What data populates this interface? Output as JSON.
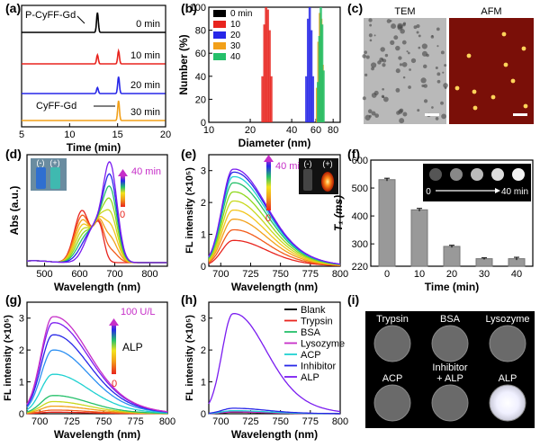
{
  "figure": {
    "panels": [
      "(a)",
      "(b)",
      "(c)",
      "(d)",
      "(e)",
      "(f)",
      "(g)",
      "(h)",
      "(i)"
    ]
  },
  "colors": {
    "black": "#000000",
    "red": "#e8241e",
    "blue": "#2727e8",
    "orange": "#f2a019",
    "green": "#25c06a",
    "magenta": "#c62ec8",
    "purple": "#7a1cf0",
    "cyan": "#1fd1d1",
    "lightblue": "#2b8ff2",
    "yellow": "#f2e21c",
    "lime": "#8fd81d"
  },
  "chart_data": [
    {
      "panel": "(a)",
      "type": "line",
      "xlabel": "Time (min)",
      "ylabel": "",
      "xlim": [
        5,
        20
      ],
      "xticks": [
        5,
        10,
        15,
        20
      ],
      "annotations": [
        "P-CyFF-Gd",
        "CyFF-Gd"
      ],
      "series": [
        {
          "name": "0 min",
          "color": "#000000",
          "peaks": [
            {
              "x": 12.9,
              "h": 1.0
            }
          ]
        },
        {
          "name": "10 min",
          "color": "#e8241e",
          "peaks": [
            {
              "x": 12.9,
              "h": 0.45
            },
            {
              "x": 15.1,
              "h": 0.65
            }
          ]
        },
        {
          "name": "20 min",
          "color": "#2727e8",
          "peaks": [
            {
              "x": 12.9,
              "h": 0.3
            },
            {
              "x": 15.1,
              "h": 0.85
            }
          ]
        },
        {
          "name": "30 min",
          "color": "#f2a019",
          "peaks": [
            {
              "x": 15.1,
              "h": 1.0
            }
          ]
        }
      ]
    },
    {
      "panel": "(b)",
      "type": "bar",
      "xlabel": "Diameter (nm)",
      "ylabel": "Number (%)",
      "xlim": [
        10,
        80
      ],
      "xticks": [
        10,
        20,
        40,
        60,
        80
      ],
      "ylim": [
        0,
        100
      ],
      "yticks": [
        0,
        20,
        40,
        60,
        80,
        100
      ],
      "legend": "top-left",
      "series": [
        {
          "name": "0 min",
          "color": "#000000",
          "bins": []
        },
        {
          "name": "10",
          "color": "#e8241e",
          "bins": [
            [
              24.5,
              40
            ],
            [
              25.3,
              85
            ],
            [
              26,
              100
            ],
            [
              26.8,
              98
            ],
            [
              27.6,
              80
            ],
            [
              28.4,
              40
            ]
          ]
        },
        {
          "name": "20",
          "color": "#2727e8",
          "bins": [
            [
              51,
              40
            ],
            [
              52.5,
              90
            ],
            [
              54,
              100
            ],
            [
              55.5,
              80
            ],
            [
              57,
              40
            ]
          ]
        },
        {
          "name": "30",
          "color": "#f2a019",
          "bins": [
            [
              61,
              30
            ],
            [
              62.5,
              70
            ],
            [
              64,
              95
            ],
            [
              65.5,
              90
            ],
            [
              67,
              50
            ]
          ]
        },
        {
          "name": "40",
          "color": "#25c06a",
          "bins": [
            [
              62,
              35
            ],
            [
              63.5,
              75
            ],
            [
              65,
              100
            ],
            [
              66.5,
              85
            ],
            [
              68,
              45
            ]
          ]
        }
      ]
    },
    {
      "panel": "(c)",
      "type": "table",
      "images": [
        "TEM",
        "AFM"
      ]
    },
    {
      "panel": "(d)",
      "type": "line",
      "xlabel": "Wavelength (nm)",
      "ylabel": "Abs (a.u.)",
      "xlim": [
        450,
        850
      ],
      "xticks": [
        500,
        600,
        700,
        800
      ],
      "inset": [
        "(-)",
        "(+)"
      ],
      "time_label": "40 min",
      "start_label": "0",
      "series_count": 9
    },
    {
      "panel": "(e)",
      "type": "line",
      "xlabel": "Wavelength (nm)",
      "ylabel": "FL intensity (×10⁵)",
      "xlim": [
        690,
        800
      ],
      "xticks": [
        700,
        725,
        750,
        775,
        800
      ],
      "ylim": [
        0,
        3.5
      ],
      "yticks": [
        0,
        1,
        2,
        3
      ],
      "inset": [
        "(-)",
        "(+)"
      ],
      "time_label": "40 min",
      "start_label": "0",
      "peak_values": [
        0.85,
        1.2,
        1.55,
        1.85,
        2.15,
        2.45,
        2.75,
        2.95,
        3.1,
        3.2
      ]
    },
    {
      "panel": "(f)",
      "type": "bar",
      "xlabel": "Time (min)",
      "ylabel": "T₁ (ms)",
      "categories": [
        "0",
        "10",
        "20",
        "30",
        "40"
      ],
      "values": [
        530,
        422,
        291,
        247,
        247
      ],
      "errors": [
        5,
        5,
        4,
        3,
        5
      ],
      "ylim": [
        220,
        600
      ],
      "yticks": [
        220,
        300,
        400,
        500,
        600
      ],
      "inset_label_start": "0",
      "inset_label_end": "40 min"
    },
    {
      "panel": "(g)",
      "type": "line",
      "xlabel": "Wavelength (nm)",
      "ylabel": "FL intensity (×10⁵)",
      "xlim": [
        690,
        800
      ],
      "xticks": [
        700,
        725,
        750,
        775,
        800
      ],
      "ylim": [
        0,
        3.5
      ],
      "yticks": [
        0,
        1,
        2,
        3
      ],
      "top_label": "100 U/L",
      "mid_label": "ALP",
      "bottom_label": "0",
      "peak_values": [
        0.05,
        0.12,
        0.25,
        0.4,
        0.6,
        1.3,
        2.1,
        2.6,
        3.0,
        3.2
      ]
    },
    {
      "panel": "(h)",
      "type": "line",
      "xlabel": "Wavelength (nm)",
      "ylabel": "FL intensity (×10⁵)",
      "xlim": [
        690,
        800
      ],
      "xticks": [
        700,
        725,
        750,
        775,
        800
      ],
      "ylim": [
        0,
        3.5
      ],
      "yticks": [
        0,
        1,
        2,
        3
      ],
      "legend": "right",
      "series": [
        {
          "name": "Blank",
          "color": "#000000",
          "peak": 0.05
        },
        {
          "name": "Trypsin",
          "color": "#e8241e",
          "peak": 0.06
        },
        {
          "name": "BSA",
          "color": "#25c06a",
          "peak": 0.07
        },
        {
          "name": "Lysozyme",
          "color": "#c62ec8",
          "peak": 0.06
        },
        {
          "name": "ACP",
          "color": "#1fd1d1",
          "peak": 0.1
        },
        {
          "name": "Inhibitor",
          "color": "#2727e8",
          "peak": 0.18
        },
        {
          "name": "ALP",
          "color": "#7a1cf0",
          "peak": 3.3
        }
      ]
    },
    {
      "panel": "(i)",
      "type": "table",
      "labels": [
        "Trypsin",
        "BSA",
        "Lysozyme",
        "ACP",
        "Inhibitor\n+ ALP",
        "ALP"
      ]
    }
  ]
}
